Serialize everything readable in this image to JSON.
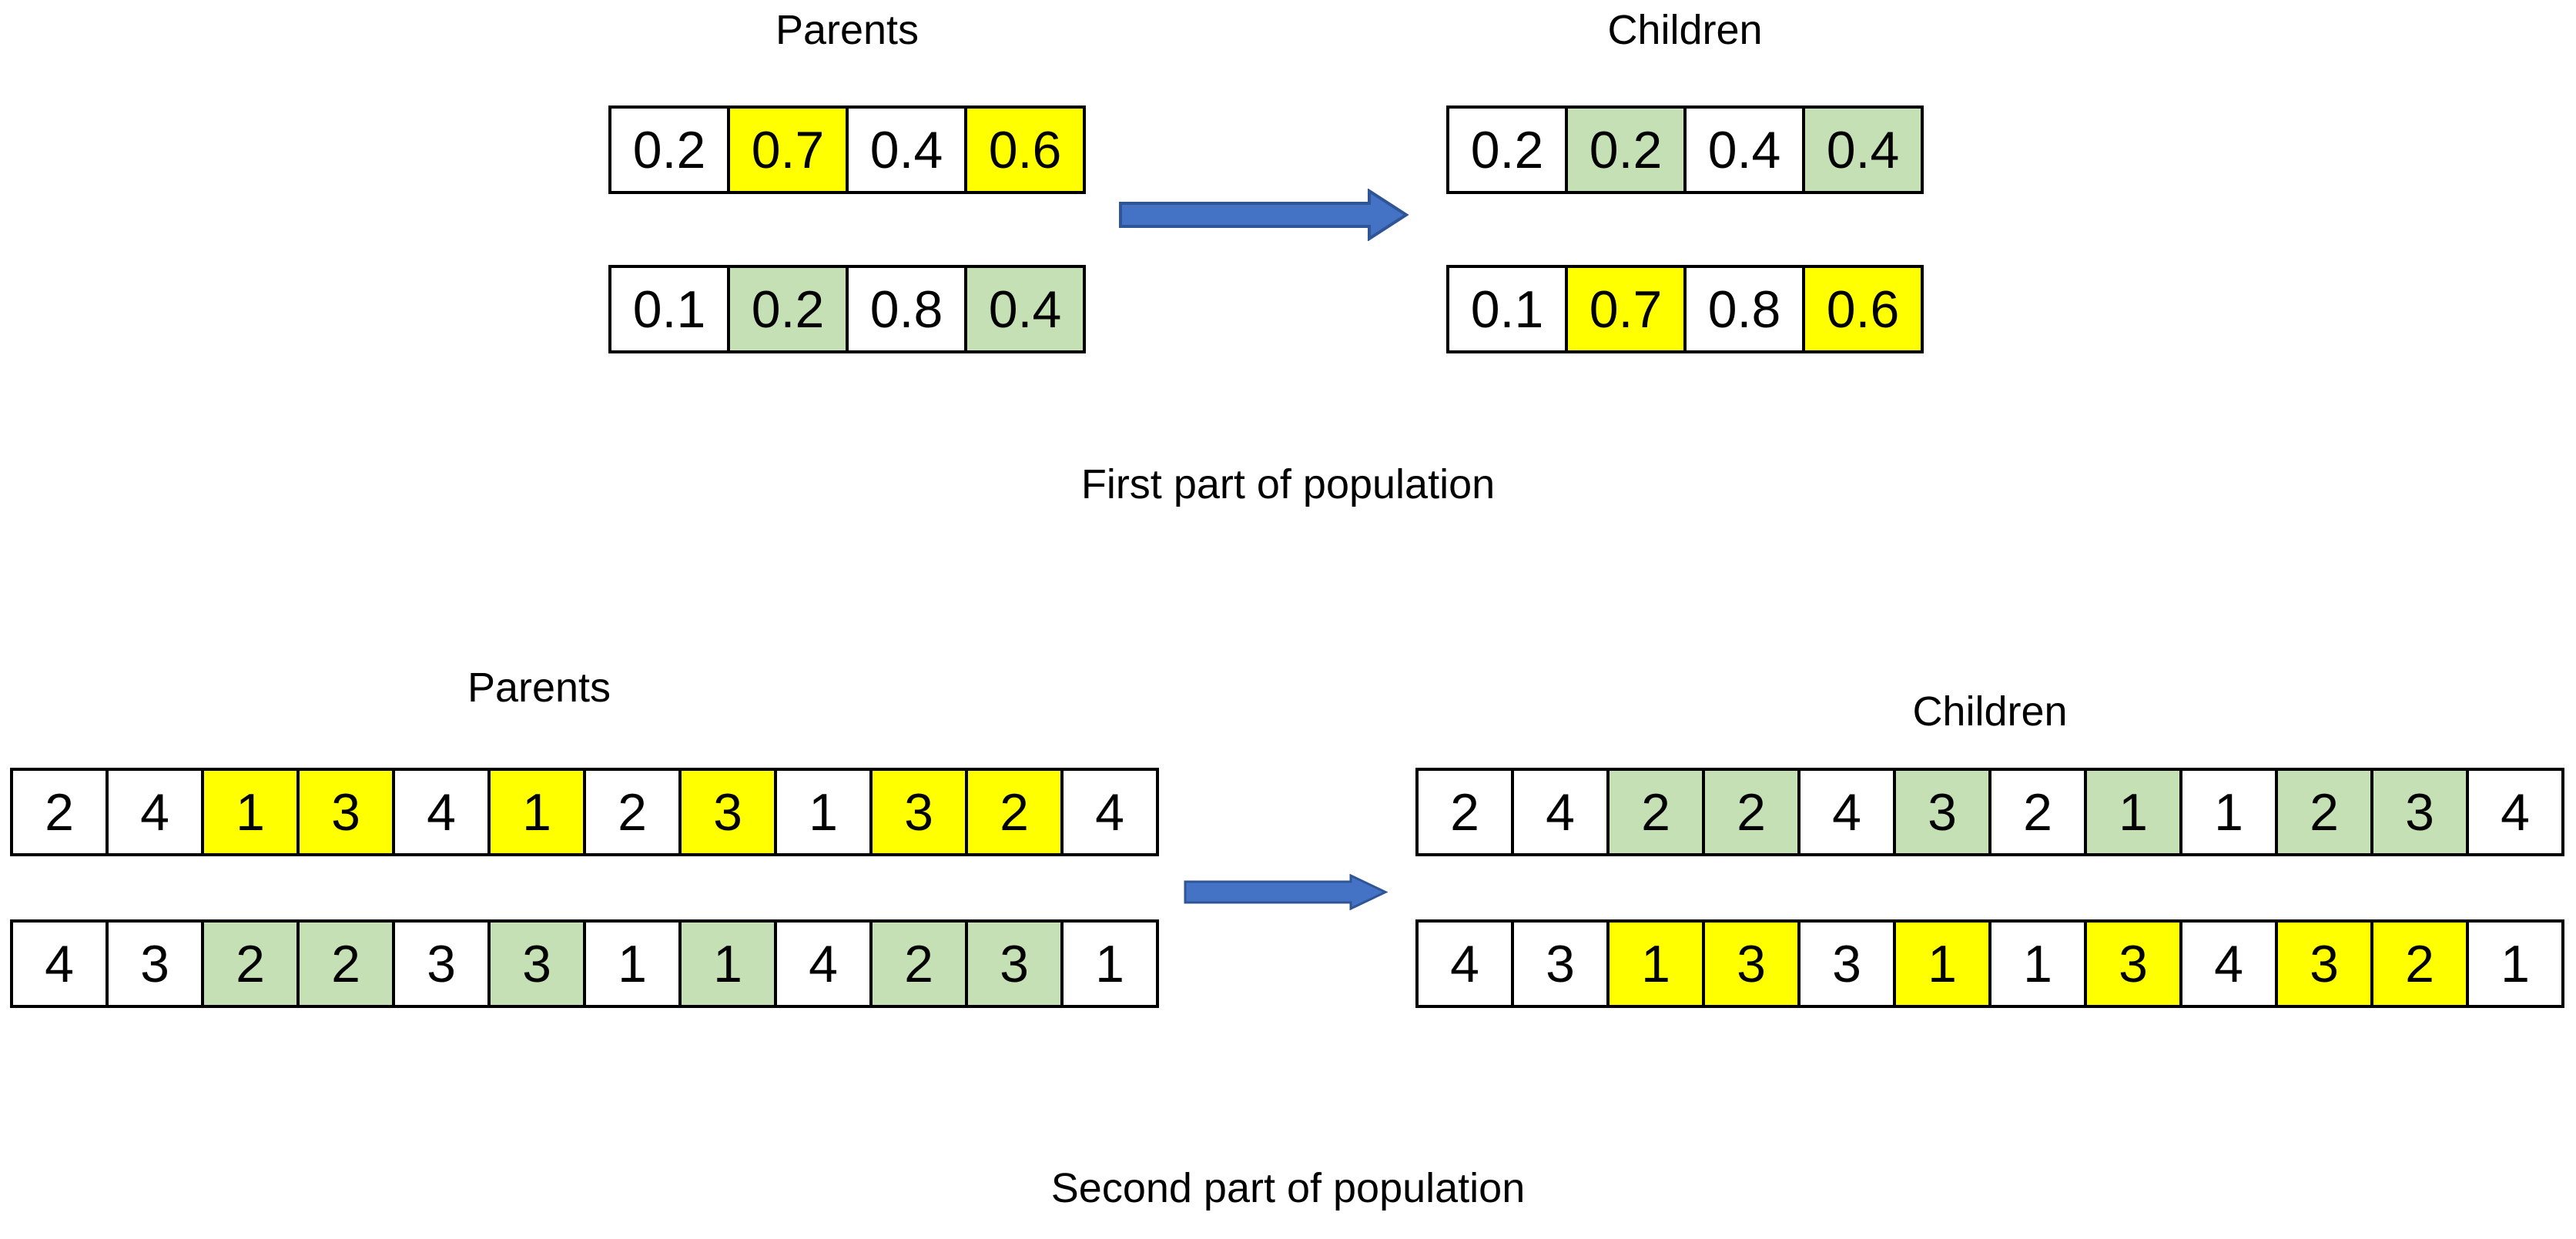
{
  "colors": {
    "highlight_yellow": "#FFFF00",
    "highlight_green": "#C5E0B4",
    "cell_border": "#000000",
    "arrow_fill": "#4472C4",
    "arrow_border": "#2F5597",
    "background": "#FFFFFF",
    "text": "#000000"
  },
  "first_part": {
    "caption": "First part of population",
    "parents": {
      "label": "Parents",
      "rows": [
        {
          "cells": [
            {
              "value": "0.2",
              "highlight": "none"
            },
            {
              "value": "0.7",
              "highlight": "yellow"
            },
            {
              "value": "0.4",
              "highlight": "none"
            },
            {
              "value": "0.6",
              "highlight": "yellow"
            }
          ]
        },
        {
          "cells": [
            {
              "value": "0.1",
              "highlight": "none"
            },
            {
              "value": "0.2",
              "highlight": "green"
            },
            {
              "value": "0.8",
              "highlight": "none"
            },
            {
              "value": "0.4",
              "highlight": "green"
            }
          ]
        }
      ]
    },
    "children": {
      "label": "Children",
      "rows": [
        {
          "cells": [
            {
              "value": "0.2",
              "highlight": "none"
            },
            {
              "value": "0.2",
              "highlight": "green"
            },
            {
              "value": "0.4",
              "highlight": "none"
            },
            {
              "value": "0.4",
              "highlight": "green"
            }
          ]
        },
        {
          "cells": [
            {
              "value": "0.1",
              "highlight": "none"
            },
            {
              "value": "0.7",
              "highlight": "yellow"
            },
            {
              "value": "0.8",
              "highlight": "none"
            },
            {
              "value": "0.6",
              "highlight": "yellow"
            }
          ]
        }
      ]
    }
  },
  "second_part": {
    "caption": "Second part of population",
    "parents": {
      "label": "Parents",
      "rows": [
        {
          "cells": [
            {
              "value": "2",
              "highlight": "none"
            },
            {
              "value": "4",
              "highlight": "none"
            },
            {
              "value": "1",
              "highlight": "yellow"
            },
            {
              "value": "3",
              "highlight": "yellow"
            },
            {
              "value": "4",
              "highlight": "none"
            },
            {
              "value": "1",
              "highlight": "yellow"
            },
            {
              "value": "2",
              "highlight": "none"
            },
            {
              "value": "3",
              "highlight": "yellow"
            },
            {
              "value": "1",
              "highlight": "none"
            },
            {
              "value": "3",
              "highlight": "yellow"
            },
            {
              "value": "2",
              "highlight": "yellow"
            },
            {
              "value": "4",
              "highlight": "none"
            }
          ]
        },
        {
          "cells": [
            {
              "value": "4",
              "highlight": "none"
            },
            {
              "value": "3",
              "highlight": "none"
            },
            {
              "value": "2",
              "highlight": "green"
            },
            {
              "value": "2",
              "highlight": "green"
            },
            {
              "value": "3",
              "highlight": "none"
            },
            {
              "value": "3",
              "highlight": "green"
            },
            {
              "value": "1",
              "highlight": "none"
            },
            {
              "value": "1",
              "highlight": "green"
            },
            {
              "value": "4",
              "highlight": "none"
            },
            {
              "value": "2",
              "highlight": "green"
            },
            {
              "value": "3",
              "highlight": "green"
            },
            {
              "value": "1",
              "highlight": "none"
            }
          ]
        }
      ]
    },
    "children": {
      "label": "Children",
      "rows": [
        {
          "cells": [
            {
              "value": "2",
              "highlight": "none"
            },
            {
              "value": "4",
              "highlight": "none"
            },
            {
              "value": "2",
              "highlight": "green"
            },
            {
              "value": "2",
              "highlight": "green"
            },
            {
              "value": "4",
              "highlight": "none"
            },
            {
              "value": "3",
              "highlight": "green"
            },
            {
              "value": "2",
              "highlight": "none"
            },
            {
              "value": "1",
              "highlight": "green"
            },
            {
              "value": "1",
              "highlight": "none"
            },
            {
              "value": "2",
              "highlight": "green"
            },
            {
              "value": "3",
              "highlight": "green"
            },
            {
              "value": "4",
              "highlight": "none"
            }
          ]
        },
        {
          "cells": [
            {
              "value": "4",
              "highlight": "none"
            },
            {
              "value": "3",
              "highlight": "none"
            },
            {
              "value": "1",
              "highlight": "yellow"
            },
            {
              "value": "3",
              "highlight": "yellow"
            },
            {
              "value": "3",
              "highlight": "none"
            },
            {
              "value": "1",
              "highlight": "yellow"
            },
            {
              "value": "1",
              "highlight": "none"
            },
            {
              "value": "3",
              "highlight": "yellow"
            },
            {
              "value": "4",
              "highlight": "none"
            },
            {
              "value": "3",
              "highlight": "yellow"
            },
            {
              "value": "2",
              "highlight": "yellow"
            },
            {
              "value": "1",
              "highlight": "none"
            }
          ]
        }
      ]
    }
  }
}
